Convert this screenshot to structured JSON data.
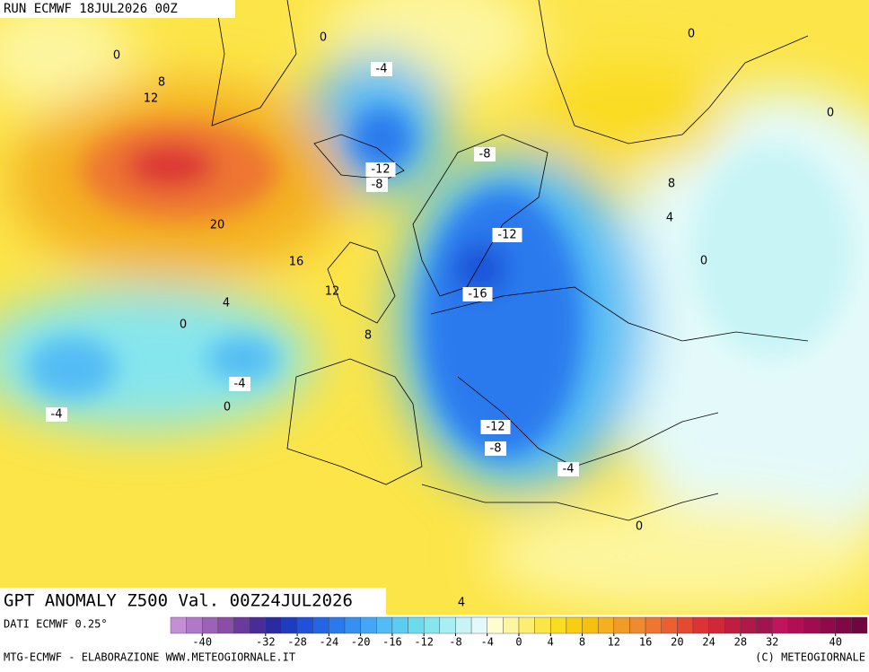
{
  "header": "RUN ECMWF 18JUL2026 00Z",
  "title": "GPT ANOMALY Z500 Val. 00Z24JUL2026",
  "source": "DATI ECMWF 0.25°",
  "footer_left": "MTG-ECMWF - ELABORAZIONE WWW.METEOGIORNALE.IT",
  "footer_right": "(C) METEOGIORNALE",
  "contour_labels": [
    0,
    8,
    12,
    0,
    -4,
    0,
    0,
    -12,
    -8,
    -8,
    8,
    4,
    20,
    -12,
    0,
    16,
    12,
    -16,
    4,
    0,
    8,
    -4,
    -4,
    0,
    -12,
    -8,
    -4,
    0,
    4
  ],
  "colorbar": {
    "lim": [
      -44,
      44
    ],
    "colors": [
      "#c58fd6",
      "#b078c8",
      "#9c62b8",
      "#8a4ea8",
      "#6a3a9c",
      "#4a2c98",
      "#2c2aa0",
      "#1e3cc0",
      "#1f52d8",
      "#2266e6",
      "#2a7aee",
      "#3690f2",
      "#44a6f4",
      "#52bcf4",
      "#5ccdf0",
      "#6cdcec",
      "#86e6ee",
      "#a8eef2",
      "#c8f4f6",
      "#e4fafa",
      "#fdfdd0",
      "#fdf6a0",
      "#fdee70",
      "#fce548",
      "#fadc20",
      "#f8cf10",
      "#f6c010",
      "#f4b020",
      "#f29c28",
      "#f08a30",
      "#ee7630",
      "#ea6030",
      "#e44a30",
      "#dc3434",
      "#d02838",
      "#c01e40",
      "#b01848",
      "#a01450",
      "#c0145c",
      "#b00f55",
      "#a00c50",
      "#900a4a",
      "#800845",
      "#700640"
    ],
    "ticks": [
      -40,
      -32,
      -28,
      -24,
      -20,
      -16,
      -12,
      -8,
      -4,
      0,
      4,
      8,
      12,
      16,
      20,
      24,
      28,
      32,
      40
    ]
  }
}
